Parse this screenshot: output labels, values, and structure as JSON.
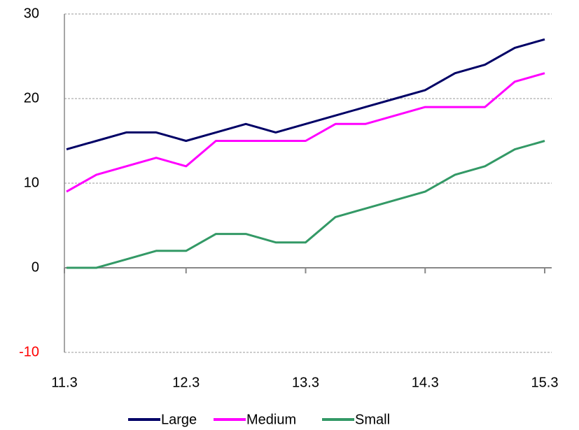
{
  "chart_data": {
    "type": "line",
    "categories": [
      "11.3",
      null,
      null,
      null,
      "12.3",
      null,
      null,
      null,
      "13.3",
      null,
      null,
      null,
      "14.3",
      null,
      null,
      null,
      "15.3"
    ],
    "series": [
      {
        "name": "Large",
        "color": "#000066",
        "values": [
          14,
          15,
          16,
          16,
          15,
          16,
          17,
          16,
          17,
          18,
          19,
          20,
          21,
          23,
          24,
          26,
          27
        ]
      },
      {
        "name": "Medium",
        "color": "#ff00ff",
        "values": [
          9,
          11,
          12,
          13,
          12,
          15,
          15,
          15,
          15,
          17,
          17,
          18,
          19,
          19,
          19,
          22,
          23
        ]
      },
      {
        "name": "Small",
        "color": "#339966",
        "values": [
          0,
          0,
          1,
          2,
          2,
          4,
          4,
          3,
          3,
          6,
          7,
          8,
          9,
          11,
          12,
          14,
          15
        ]
      }
    ],
    "ylim": [
      -10,
      30
    ],
    "yticks": [
      -10,
      0,
      10,
      20,
      30
    ],
    "grid": true,
    "negative_tick_color": "#ff0000",
    "legend": "bottom"
  }
}
